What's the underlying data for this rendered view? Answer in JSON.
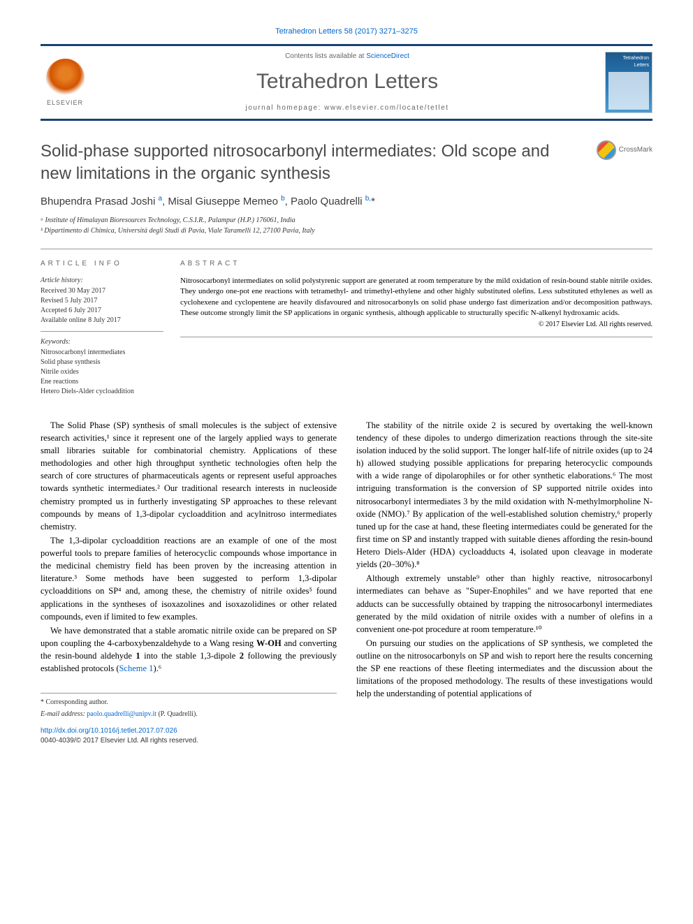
{
  "citation": "Tetrahedron Letters 58 (2017) 3271–3275",
  "header": {
    "contents_prefix": "Contents lists available at ",
    "contents_link": "ScienceDirect",
    "journal_name": "Tetrahedron Letters",
    "homepage_prefix": "journal homepage: ",
    "homepage_url": "www.elsevier.com/locate/tetlet",
    "publisher": "ELSEVIER",
    "cover_title": "Tetrahedron Letters"
  },
  "article": {
    "title": "Solid-phase supported nitrosocarbonyl intermediates: Old scope and new limitations in the organic synthesis",
    "crossmark_label": "CrossMark",
    "authors_html": "Bhupendra Prasad Joshi <sup>a</sup>, Misal Giuseppe Memeo <sup>b</sup>, Paolo Quadrelli <sup>b,</sup>*",
    "affiliations": [
      "ᵃ Institute of Himalayan Bioresources Technology, C.S.I.R., Palampur (H.P.) 176061, India",
      "ᵇ Dipartimento di Chimica, Università degli Studi di Pavia, Viale Taramelli 12, 27100 Pavia, Italy"
    ]
  },
  "info": {
    "heading": "ARTICLE INFO",
    "history_label": "Article history:",
    "history": [
      "Received 30 May 2017",
      "Revised 5 July 2017",
      "Accepted 6 July 2017",
      "Available online 8 July 2017"
    ],
    "keywords_label": "Keywords:",
    "keywords": [
      "Nitrosocarbonyl intermediates",
      "Solid phase synthesis",
      "Nitrile oxides",
      "Ene reactions",
      "Hetero Diels-Alder cycloaddition"
    ]
  },
  "abstract": {
    "heading": "ABSTRACT",
    "text": "Nitrosocarbonyl intermediates on solid polystyrenic support are generated at room temperature by the mild oxidation of resin-bound stable nitrile oxides. They undergo one-pot ene reactions with tetramethyl- and trimethyl-ethylene and other highly substituted olefins. Less substituted ethylenes as well as cyclohexene and cyclopentene are heavily disfavoured and nitrosocarbonyls on solid phase undergo fast dimerization and/or decomposition pathways. These outcome strongly limit the SP applications in organic synthesis, although applicable to structurally specific N-alkenyl hydroxamic acids.",
    "copyright": "© 2017 Elsevier Ltd. All rights reserved."
  },
  "body": {
    "p1": "The Solid Phase (SP) synthesis of small molecules is the subject of extensive research activities,¹ since it represent one of the largely applied ways to generate small libraries suitable for combinatorial chemistry. Applications of these methodologies and other high throughput synthetic technologies often help the search of core structures of pharmaceuticals agents or represent useful approaches towards synthetic intermediates.² Our traditional research interests in nucleoside chemistry prompted us in furtherly investigating SP approaches to these relevant compounds by means of 1,3-dipolar cycloaddition and acylnitroso intermediates chemistry.",
    "p2": "The 1,3-dipolar cycloaddition reactions are an example of one of the most powerful tools to prepare families of heterocyclic compounds whose importance in the medicinal chemistry field has been proven by the increasing attention in literature.³ Some methods have been suggested to perform 1,3-dipolar cycloadditions on SP⁴ and, among these, the chemistry of nitrile oxides⁵ found applications in the syntheses of isoxazolines and isoxazolidines or other related compounds, even if limited to few examples.",
    "p3_a": "We have demonstrated that a stable aromatic nitrile oxide can be prepared on SP upon coupling the 4-carboxybenzaldehyde to a Wang resing ",
    "p3_b": " and converting the resin-bound aldehyde ",
    "p3_c": " into the stable 1,3-dipole ",
    "p3_d": " following the previously established protocols (",
    "p3_scheme": "Scheme 1",
    "p3_e": ").⁶",
    "p4": "The stability of the nitrile oxide 2 is secured by overtaking the well-known tendency of these dipoles to undergo dimerization reactions through the site-site isolation induced by the solid support. The longer half-life of nitrile oxides (up to 24 h) allowed studying possible applications for preparing heterocyclic compounds with a wide range of dipolarophiles or for other synthetic elaborations.⁶ The most intriguing transformation is the conversion of SP supported nitrile oxides into nitrosocarbonyl intermediates 3 by the mild oxidation with N-methylmorpholine N-oxide (NMO).⁷ By application of the well-established solution chemistry,⁶ properly tuned up for the case at hand, these fleeting intermediates could be generated for the first time on SP and instantly trapped with suitable dienes affording the resin-bound Hetero Diels-Alder (HDA) cycloadducts 4, isolated upon cleavage in moderate yields (20–30%).⁸",
    "p5": "Although extremely unstable⁹ other than highly reactive, nitrosocarbonyl intermediates can behave as \"Super-Enophiles\" and we have reported that ene adducts can be successfully obtained by trapping the nitrosocarbonyl intermediates generated by the mild oxidation of nitrile oxides with a number of olefins in a convenient one-pot procedure at room temperature.¹⁰",
    "p6": "On pursuing our studies on the applications of SP synthesis, we completed the outline on the nitrosocarbonyls on SP and wish to report here the results concerning the SP ene reactions of these fleeting intermediates and the discussion about the limitations of the proposed methodology. The results of these investigations would help the understanding of potential applications of"
  },
  "footer": {
    "corresponding": "* Corresponding author.",
    "email_label": "E-mail address: ",
    "email": "paolo.quadrelli@unipv.it",
    "email_name": " (P. Quadrelli).",
    "doi": "http://dx.doi.org/10.1016/j.tetlet.2017.07.026",
    "issn_copyright": "0040-4039/© 2017 Elsevier Ltd. All rights reserved."
  },
  "colors": {
    "accent": "#1a4173",
    "link": "#0066cc",
    "text_gray": "#5a5a5a"
  }
}
